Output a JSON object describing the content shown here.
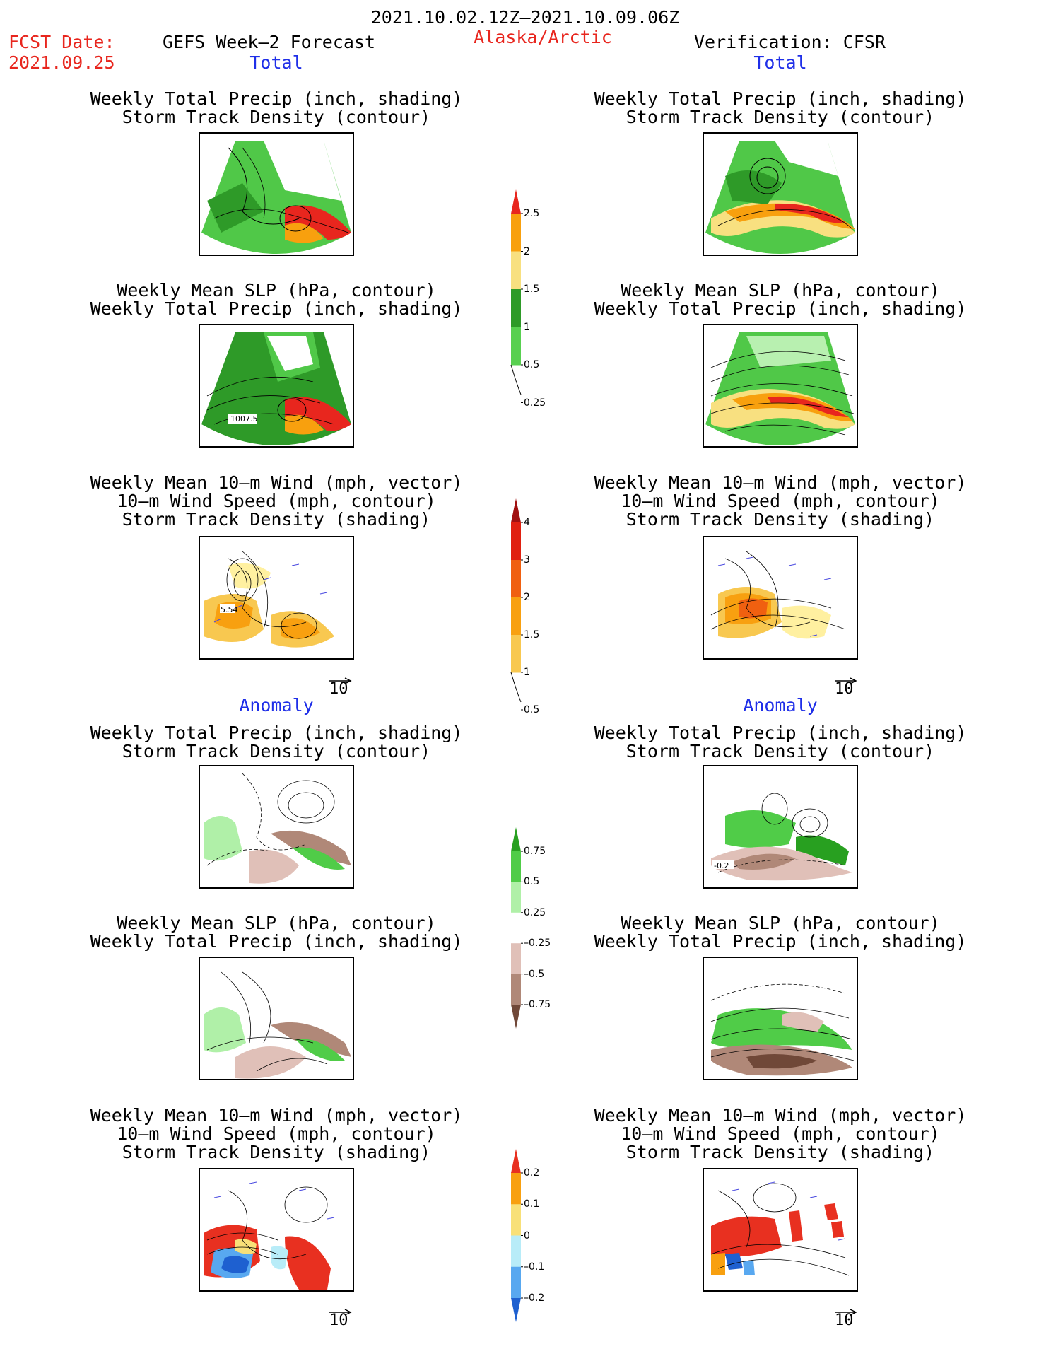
{
  "header": {
    "period": "2021.10.02.12Z–2021.10.09.06Z",
    "fcst_label": "FCST Date:",
    "fcst_date": "2021.09.25",
    "model": "GEFS Week–2 Forecast",
    "region": "Alaska/Arctic",
    "verification": "Verification: CFSR"
  },
  "sections": {
    "total": "Total",
    "anomaly": "Anomaly"
  },
  "panel_titles": {
    "precip_track": [
      "Weekly Total Precip (inch, shading)",
      "Storm Track Density (contour)"
    ],
    "slp_precip": [
      "Weekly Mean SLP (hPa, contour)",
      "Weekly Total Precip (inch, shading)"
    ],
    "wind": [
      "Weekly Mean 10–m Wind (mph, vector)",
      "10–m Wind Speed (mph, contour)",
      "Storm Track Density (shading)"
    ]
  },
  "contour_labels": {
    "slp_forecast": "1007.5",
    "wind_forecast": "5.54",
    "anom_cfsr": "-0.2"
  },
  "vector_reference": "10",
  "colorbars": {
    "precip_total": {
      "ticks": [
        "2.5",
        "2",
        "1.5",
        "1",
        "0.5",
        "0.25"
      ],
      "colors": [
        "#e8261e",
        "#f8a00e",
        "#f8e080",
        "#2e9a28",
        "#58d050",
        "#b8f0b0"
      ]
    },
    "track_total": {
      "ticks": [
        "4",
        "3",
        "2",
        "1.5",
        "1",
        "0.5"
      ],
      "colors": [
        "#a01010",
        "#e02010",
        "#f06010",
        "#f8a010",
        "#f8c850",
        "#fff0a0"
      ]
    },
    "precip_anom": {
      "ticks": [
        "0.75",
        "0.5",
        "0.25",
        "–0.25",
        "–0.5",
        "–0.75"
      ],
      "colors": [
        "#28a020",
        "#50cc48",
        "#b0f0a8",
        "#ffffff",
        "#e0c0b8",
        "#b08878",
        "#704838"
      ]
    },
    "track_anom": {
      "ticks": [
        "0.2",
        "0.1",
        "0",
        "–0.1",
        "–0.2"
      ],
      "colors": [
        "#e83020",
        "#f8a010",
        "#f8e078",
        "#b8ecf8",
        "#58a8f0",
        "#1e60d0"
      ]
    }
  }
}
